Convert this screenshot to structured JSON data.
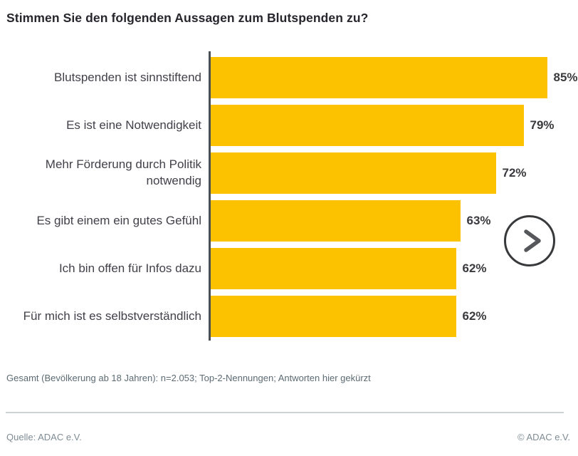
{
  "page": {
    "title": "Stimmen Sie den folgenden Aussagen zum Blutspenden zu?",
    "footnote": "Gesamt (Bevölkerung ab 18 Jahren): n=2.053; Top-2-Nennungen; Antworten hier gekürzt",
    "source": "Quelle: ADAC e.V.",
    "copyright": "© ADAC e.V."
  },
  "next_button": {
    "icon": "chevron-right-icon"
  },
  "chart_data": {
    "type": "bar",
    "orientation": "horizontal",
    "title": "Stimmen Sie den folgenden Aussagen zum Blutspenden zu?",
    "categories": [
      "Blutspenden ist sinnstiftend",
      "Es ist eine Notwendigkeit",
      "Mehr Förderung durch Politik notwendig",
      "Es gibt einem ein gutes Gefühl",
      "Ich bin offen für Infos dazu",
      "Für mich ist es selbstverständlich"
    ],
    "display_labels": [
      "Blutspenden ist sinnstiftend",
      "Es ist eine Notwendigkeit",
      "Mehr Förderung durch Politik\nnotwendig",
      "Es gibt einem ein gutes Gefühl",
      "Ich bin offen für Infos dazu",
      "Für mich ist es selbstverständlich"
    ],
    "values": [
      85,
      79,
      72,
      63,
      62,
      62
    ],
    "value_labels": [
      "85%",
      "79%",
      "72%",
      "63%",
      "62%",
      "62%"
    ],
    "xlim": [
      0,
      100
    ],
    "unit": "%",
    "bar_color": "#FCC200",
    "grid": false,
    "legend": false
  }
}
